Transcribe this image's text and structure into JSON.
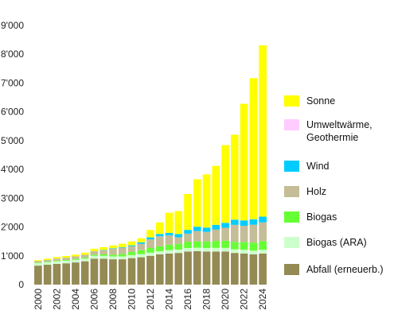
{
  "chart_data": {
    "type": "bar",
    "stacked": true,
    "categories": [
      "2000",
      "2001",
      "2002",
      "2003",
      "2004",
      "2005",
      "2006",
      "2007",
      "2008",
      "2009",
      "2010",
      "2011",
      "2012",
      "2013",
      "2014",
      "2015",
      "2016",
      "2017",
      "2018",
      "2019",
      "2020",
      "2021",
      "2022",
      "2023",
      "2024"
    ],
    "x_tick_labels": [
      "2000",
      "2002",
      "2004",
      "2006",
      "2008",
      "2010",
      "2012",
      "2014",
      "2016",
      "2018",
      "2020",
      "2022",
      "2024"
    ],
    "y_tick_labels": [
      "0",
      "1'000",
      "2'000",
      "3'000",
      "4'000",
      "5'000",
      "6'000",
      "7'000",
      "8'000",
      "9'000"
    ],
    "ylim": [
      0,
      9000
    ],
    "grid": false,
    "legend_position": "right",
    "series": [
      {
        "name": "Abfall (erneuerb.)",
        "color": "#948a54",
        "values": [
          660,
          690,
          720,
          740,
          770,
          810,
          900,
          900,
          880,
          880,
          920,
          950,
          1000,
          1050,
          1080,
          1100,
          1150,
          1160,
          1150,
          1150,
          1150,
          1100,
          1080,
          1050,
          1080
        ]
      },
      {
        "name": "Biogas (ARA)",
        "color": "#ccffcc",
        "values": [
          90,
          90,
          90,
          90,
          90,
          95,
          100,
          100,
          100,
          100,
          105,
          105,
          110,
          110,
          115,
          115,
          120,
          120,
          120,
          125,
          125,
          125,
          130,
          130,
          130
        ]
      },
      {
        "name": "Biogas",
        "color": "#66ff33",
        "values": [
          20,
          20,
          25,
          25,
          30,
          35,
          40,
          50,
          60,
          80,
          110,
          140,
          160,
          170,
          190,
          200,
          220,
          220,
          230,
          240,
          250,
          260,
          270,
          280,
          300
        ]
      },
      {
        "name": "Holz",
        "color": "#c4bd97",
        "values": [
          50,
          60,
          70,
          80,
          90,
          100,
          120,
          150,
          200,
          220,
          200,
          220,
          300,
          350,
          320,
          230,
          280,
          360,
          330,
          400,
          450,
          590,
          560,
          620,
          650
        ]
      },
      {
        "name": "Wind",
        "color": "#00ccff",
        "values": [
          0,
          0,
          0,
          0,
          0,
          0,
          5,
          10,
          20,
          20,
          30,
          50,
          70,
          80,
          90,
          110,
          130,
          150,
          150,
          160,
          170,
          180,
          190,
          190,
          200
        ]
      },
      {
        "name": "Umweltwärme, Geothermie",
        "color": "#ffccff",
        "values": [
          0,
          0,
          0,
          0,
          0,
          0,
          0,
          0,
          0,
          0,
          0,
          0,
          0,
          0,
          0,
          0,
          0,
          0,
          0,
          0,
          0,
          0,
          0,
          0,
          0
        ]
      },
      {
        "name": "Sonne",
        "color": "#ffff00",
        "values": [
          30,
          40,
          50,
          60,
          60,
          70,
          80,
          90,
          100,
          120,
          135,
          145,
          260,
          400,
          700,
          800,
          1250,
          1650,
          1850,
          2050,
          2700,
          2950,
          4050,
          4900,
          5950
        ]
      }
    ],
    "legend_order": [
      "Sonne",
      "Umweltwärme, Geothermie",
      "Wind",
      "Holz",
      "Biogas",
      "Biogas (ARA)",
      "Abfall (erneuerb.)"
    ]
  }
}
